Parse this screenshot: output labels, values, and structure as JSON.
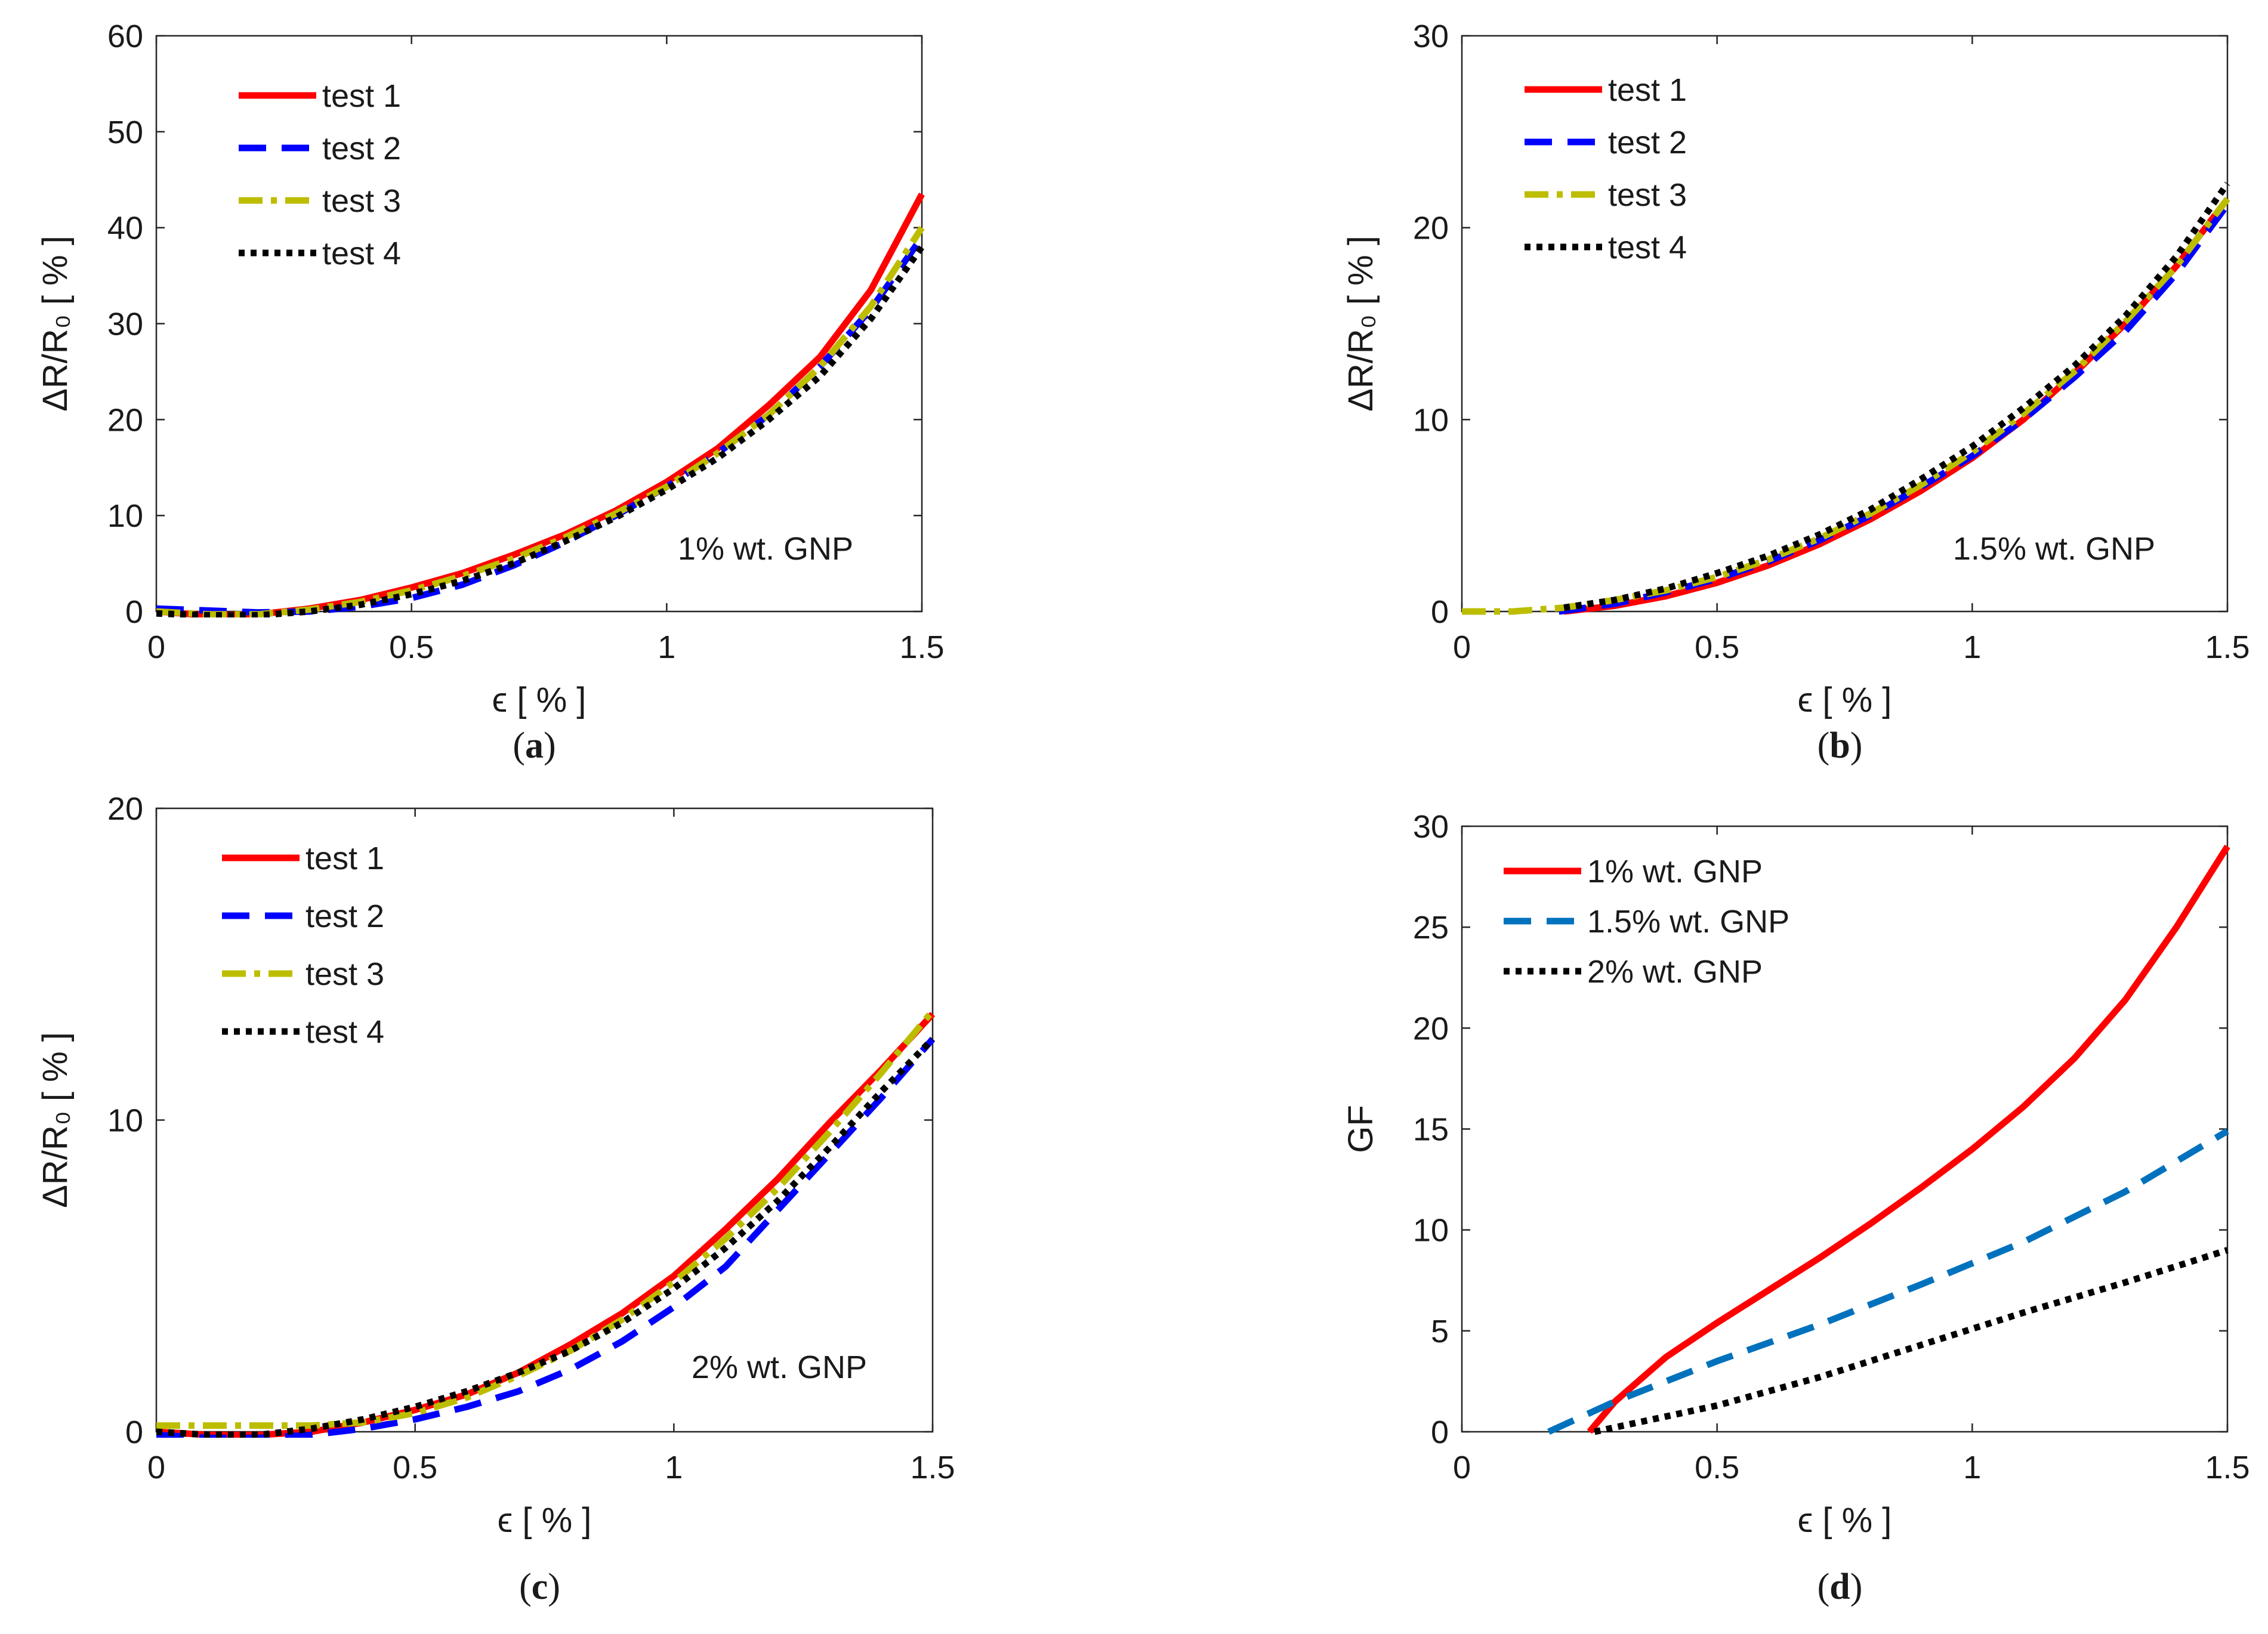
{
  "figure": {
    "panels": [
      {
        "id": "a",
        "panel_label": "a",
        "annotation": "1% wt. GNP",
        "xlabel": "ϵ [ % ]",
        "ylabel": "ΔR/R₀ [ % ]"
      },
      {
        "id": "b",
        "panel_label": "b",
        "annotation": "1.5% wt. GNP",
        "xlabel": "ϵ [ % ]",
        "ylabel": "ΔR/R₀ [ % ]"
      },
      {
        "id": "c",
        "panel_label": "c",
        "annotation": "2% wt. GNP",
        "xlabel": "ϵ [ % ]",
        "ylabel": "ΔR/R₀ [ % ]"
      },
      {
        "id": "d",
        "panel_label": "d",
        "annotation": "",
        "xlabel": "ϵ [ % ]",
        "ylabel": "GF"
      }
    ]
  },
  "chart_data": [
    {
      "panel": "a",
      "type": "line",
      "title": "",
      "xlabel": "ϵ [ % ]",
      "ylabel": "ΔR/R₀ [ % ]",
      "xlim": [
        0,
        1.5
      ],
      "ylim": [
        0,
        60
      ],
      "xticks": [
        0,
        0.5,
        1,
        1.5
      ],
      "xtick_labels": [
        "0",
        "0.5",
        "1",
        "1.5"
      ],
      "yticks": [
        0,
        10,
        20,
        30,
        40,
        50,
        60
      ],
      "ytick_labels": [
        "0",
        "10",
        "20",
        "30",
        "40",
        "50",
        "60"
      ],
      "grid": false,
      "legend_position": "top-left",
      "annotation": "1% wt. GNP",
      "series": [
        {
          "name": "test 1",
          "color": "#ff0000",
          "style": "solid",
          "x": [
            0,
            0.1,
            0.2,
            0.3,
            0.4,
            0.5,
            0.6,
            0.7,
            0.8,
            0.9,
            1.0,
            1.1,
            1.2,
            1.3,
            1.4,
            1.5
          ],
          "y": [
            0,
            -0.4,
            -0.3,
            0.3,
            1.2,
            2.5,
            4.0,
            5.9,
            8.0,
            10.5,
            13.5,
            17.0,
            21.5,
            26.5,
            33.5,
            43.5
          ]
        },
        {
          "name": "test 2",
          "color": "#0000ff",
          "style": "dashed",
          "x": [
            0,
            0.1,
            0.2,
            0.3,
            0.4,
            0.5,
            0.6,
            0.7,
            0.8,
            0.9,
            1.0,
            1.1,
            1.2,
            1.3,
            1.4,
            1.5
          ],
          "y": [
            0.3,
            0.1,
            -0.1,
            0.0,
            0.5,
            1.4,
            2.8,
            4.8,
            7.2,
            10.0,
            13.0,
            16.5,
            20.5,
            25.5,
            31.5,
            39.0
          ]
        },
        {
          "name": "test 3",
          "color": "#bdbd00",
          "style": "dashdot",
          "x": [
            0,
            0.1,
            0.2,
            0.3,
            0.4,
            0.5,
            0.6,
            0.7,
            0.8,
            0.9,
            1.0,
            1.1,
            1.2,
            1.3,
            1.4,
            1.5
          ],
          "y": [
            0,
            -0.3,
            -0.3,
            0.2,
            1.0,
            2.2,
            3.7,
            5.5,
            7.7,
            10.2,
            13.0,
            16.5,
            20.5,
            25.5,
            31.8,
            40.0
          ]
        },
        {
          "name": "test 4",
          "color": "#000000",
          "style": "dotted",
          "x": [
            0,
            0.1,
            0.2,
            0.3,
            0.4,
            0.5,
            0.6,
            0.7,
            0.8,
            0.9,
            1.0,
            1.1,
            1.2,
            1.3,
            1.4,
            1.5
          ],
          "y": [
            -0.2,
            -0.4,
            -0.4,
            0.0,
            0.7,
            1.8,
            3.2,
            5.0,
            7.3,
            9.8,
            12.7,
            16.0,
            20.0,
            24.5,
            30.5,
            38.0
          ]
        }
      ]
    },
    {
      "panel": "b",
      "type": "line",
      "title": "",
      "xlabel": "ϵ [ % ]",
      "ylabel": "ΔR/R₀ [ % ]",
      "xlim": [
        0,
        1.5
      ],
      "ylim": [
        0,
        30
      ],
      "xticks": [
        0,
        0.5,
        1,
        1.5
      ],
      "xtick_labels": [
        "0",
        "0.5",
        "1",
        "1.5"
      ],
      "yticks": [
        0,
        10,
        20,
        30
      ],
      "ytick_labels": [
        "0",
        "10",
        "20",
        "30"
      ],
      "grid": false,
      "legend_position": "top-left",
      "annotation": "1.5% wt. GNP",
      "series": [
        {
          "name": "test 1",
          "color": "#ff0000",
          "style": "solid",
          "x": [
            0.2,
            0.3,
            0.4,
            0.5,
            0.6,
            0.7,
            0.8,
            0.9,
            1.0,
            1.1,
            1.2,
            1.3,
            1.4,
            1.5
          ],
          "y": [
            0,
            0.3,
            0.8,
            1.5,
            2.4,
            3.5,
            4.8,
            6.3,
            8.0,
            10.0,
            12.4,
            15.0,
            18.0,
            21.5
          ]
        },
        {
          "name": "test 2",
          "color": "#0000ff",
          "style": "dashed",
          "x": [
            0.19,
            0.3,
            0.4,
            0.5,
            0.6,
            0.7,
            0.8,
            0.9,
            1.0,
            1.1,
            1.2,
            1.3,
            1.4,
            1.5
          ],
          "y": [
            0,
            0.4,
            1.0,
            1.7,
            2.6,
            3.7,
            5.0,
            6.5,
            8.1,
            10.0,
            12.2,
            14.6,
            17.6,
            21.2
          ]
        },
        {
          "name": "test 3",
          "color": "#bdbd00",
          "style": "dashdot",
          "x": [
            0,
            0.1,
            0.2,
            0.3,
            0.4,
            0.5,
            0.6,
            0.7,
            0.8,
            0.9,
            1.0,
            1.1,
            1.2,
            1.3,
            1.4,
            1.5
          ],
          "y": [
            0,
            0,
            0.2,
            0.6,
            1.1,
            1.8,
            2.7,
            3.8,
            5.1,
            6.6,
            8.3,
            10.3,
            12.5,
            15.1,
            18.0,
            21.5
          ]
        },
        {
          "name": "test 4",
          "color": "#000000",
          "style": "dotted",
          "x": [
            0.2,
            0.3,
            0.4,
            0.5,
            0.6,
            0.7,
            0.8,
            0.9,
            1.0,
            1.1,
            1.2,
            1.3,
            1.4,
            1.5
          ],
          "y": [
            0.2,
            0.6,
            1.2,
            2.0,
            2.9,
            4.0,
            5.3,
            6.9,
            8.6,
            10.6,
            12.8,
            15.4,
            18.5,
            22.3
          ]
        }
      ]
    },
    {
      "panel": "c",
      "type": "line",
      "title": "",
      "xlabel": "ϵ [ % ]",
      "ylabel": "ΔR/R₀ [ % ]",
      "xlim": [
        0,
        1.5
      ],
      "ylim": [
        0,
        20
      ],
      "xticks": [
        0,
        0.5,
        1,
        1.5
      ],
      "xtick_labels": [
        "0",
        "0.5",
        "1",
        "1.5"
      ],
      "yticks": [
        0,
        10,
        20
      ],
      "ytick_labels": [
        "0",
        "10",
        "20"
      ],
      "grid": false,
      "legend_position": "top-left",
      "annotation": "2% wt. GNP",
      "series": [
        {
          "name": "test 1",
          "color": "#ff0000",
          "style": "solid",
          "x": [
            0,
            0.1,
            0.2,
            0.3,
            0.4,
            0.5,
            0.6,
            0.7,
            0.8,
            0.9,
            1.0,
            1.1,
            1.2,
            1.3,
            1.4,
            1.5
          ],
          "y": [
            0,
            -0.1,
            -0.1,
            0.0,
            0.3,
            0.7,
            1.2,
            1.9,
            2.8,
            3.8,
            5.0,
            6.5,
            8.1,
            9.9,
            11.6,
            13.4
          ]
        },
        {
          "name": "test 2",
          "color": "#0000ff",
          "style": "dashed",
          "x": [
            0,
            0.1,
            0.2,
            0.3,
            0.4,
            0.5,
            0.6,
            0.7,
            0.8,
            0.9,
            1.0,
            1.1,
            1.2,
            1.3,
            1.4,
            1.5
          ],
          "y": [
            -0.1,
            -0.2,
            -0.2,
            -0.1,
            0.1,
            0.4,
            0.8,
            1.3,
            2.0,
            2.9,
            4.0,
            5.3,
            7.1,
            8.9,
            10.7,
            12.6
          ]
        },
        {
          "name": "test 3",
          "color": "#bdbd00",
          "style": "dashdot",
          "x": [
            0,
            0.1,
            0.2,
            0.3,
            0.4,
            0.5,
            0.6,
            0.7,
            0.8,
            0.9,
            1.0,
            1.1,
            1.2,
            1.3,
            1.4,
            1.5
          ],
          "y": [
            0.2,
            0.2,
            0.2,
            0.2,
            0.3,
            0.6,
            1.1,
            1.8,
            2.6,
            3.6,
            4.8,
            6.2,
            7.8,
            9.6,
            11.5,
            13.5
          ]
        },
        {
          "name": "test 4",
          "color": "#000000",
          "style": "dotted",
          "x": [
            0,
            0.1,
            0.2,
            0.3,
            0.4,
            0.5,
            0.6,
            0.7,
            0.8,
            0.9,
            1.0,
            1.1,
            1.2,
            1.3,
            1.4,
            1.5
          ],
          "y": [
            0,
            -0.1,
            -0.1,
            0.1,
            0.4,
            0.8,
            1.3,
            1.9,
            2.6,
            3.5,
            4.6,
            5.9,
            7.4,
            9.1,
            10.9,
            12.6
          ]
        }
      ]
    },
    {
      "panel": "d",
      "type": "line",
      "title": "",
      "xlabel": "ϵ [ % ]",
      "ylabel": "GF",
      "xlim": [
        0,
        1.5
      ],
      "ylim": [
        0,
        30
      ],
      "xticks": [
        0,
        0.5,
        1,
        1.5
      ],
      "xtick_labels": [
        "0",
        "0.5",
        "1",
        "1.5"
      ],
      "yticks": [
        0,
        5,
        10,
        15,
        20,
        25,
        30
      ],
      "ytick_labels": [
        "0",
        "5",
        "10",
        "15",
        "20",
        "25",
        "30"
      ],
      "grid": false,
      "legend_position": "top-left",
      "annotation": "",
      "series": [
        {
          "name": "1% wt. GNP",
          "color": "#ff0000",
          "style": "solid",
          "x": [
            0.25,
            0.3,
            0.4,
            0.5,
            0.6,
            0.7,
            0.8,
            0.9,
            1.0,
            1.1,
            1.2,
            1.3,
            1.4,
            1.5
          ],
          "y": [
            0,
            1.5,
            3.7,
            5.4,
            7.0,
            8.6,
            10.3,
            12.1,
            14.0,
            16.1,
            18.5,
            21.4,
            25.0,
            29.0
          ]
        },
        {
          "name": "1.5% wt. GNP",
          "color": "#0072bd",
          "style": "dashed",
          "x": [
            0.17,
            0.3,
            0.5,
            0.7,
            0.9,
            1.1,
            1.3,
            1.5
          ],
          "y": [
            0,
            1.5,
            3.5,
            5.3,
            7.3,
            9.4,
            11.9,
            14.9
          ]
        },
        {
          "name": "2% wt. GNP",
          "color": "#000000",
          "style": "dotted",
          "x": [
            0.26,
            0.5,
            0.7,
            0.9,
            1.1,
            1.3,
            1.5
          ],
          "y": [
            0,
            1.3,
            2.7,
            4.3,
            5.9,
            7.4,
            9.0
          ]
        }
      ]
    }
  ]
}
